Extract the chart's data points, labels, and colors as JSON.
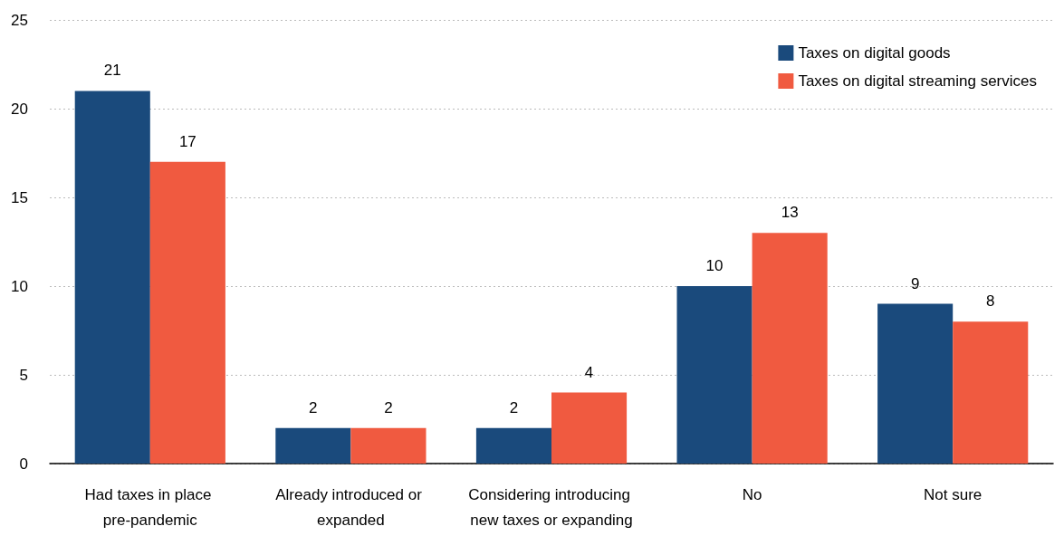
{
  "chart_data": {
    "type": "bar",
    "categories": [
      "Had taxes in place pre-pandemic",
      "Already introduced or expanded",
      "Considering introducing new taxes or expanding",
      "No",
      "Not sure"
    ],
    "series": [
      {
        "name": "Taxes on digital goods",
        "color": "#1a4a7c",
        "values": [
          21,
          2,
          2,
          10,
          9
        ]
      },
      {
        "name": "Taxes on digital streaming services",
        "color": "#f05a40",
        "values": [
          17,
          2,
          4,
          13,
          8
        ]
      }
    ],
    "ylim": [
      0,
      25
    ],
    "yticks": [
      0,
      5,
      10,
      15,
      20,
      25
    ],
    "grid": "y",
    "legend": "top right",
    "data_labels": true
  }
}
